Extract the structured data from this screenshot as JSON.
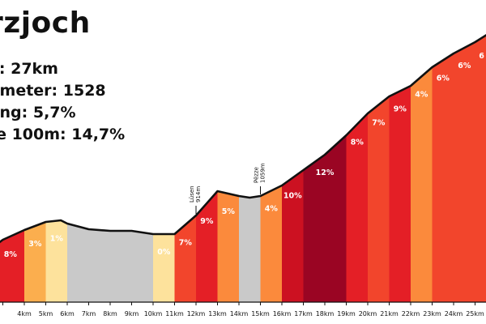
{
  "header": {
    "title": "rzjoch",
    "stats": [
      "e: 27km",
      "nmeter: 1528",
      "ung: 5,7%",
      "te 100m: 14,7%"
    ]
  },
  "colors": {
    "grade_0": "#c9c9c9",
    "grade_1": "#fde29c",
    "grade_2_3": "#fbae4e",
    "grade_4_5": "#fb8a3c",
    "grade_6_7": "#f2452c",
    "grade_8_9": "#e41f26",
    "grade_10_11": "#cc1121",
    "grade_12_plus": "#9a0523",
    "line": "#111111"
  },
  "chart_data": {
    "type": "area",
    "xlabel": "",
    "ylabel": "",
    "x_ticks": [
      "4km",
      "5km",
      "6km",
      "7km",
      "8km",
      "9km",
      "10km",
      "11km",
      "12km",
      "13km",
      "14km",
      "15km",
      "16km",
      "17km",
      "18km",
      "19km",
      "20km",
      "21km",
      "22km",
      "23km",
      "24km",
      "25km"
    ],
    "segments": [
      {
        "from_km": 2.7,
        "to_km": 4,
        "grade_label": "8%",
        "grade": 8
      },
      {
        "from_km": 4,
        "to_km": 5,
        "grade_label": "3%",
        "grade": 3
      },
      {
        "from_km": 5,
        "to_km": 6,
        "grade_label": "1%",
        "grade": 1
      },
      {
        "from_km": 6,
        "to_km": 10,
        "grade_label": "",
        "grade": 0
      },
      {
        "from_km": 10,
        "to_km": 11,
        "grade_label": "0%",
        "grade": 0.5
      },
      {
        "from_km": 11,
        "to_km": 12,
        "grade_label": "7%",
        "grade": 7
      },
      {
        "from_km": 12,
        "to_km": 13,
        "grade_label": "9%",
        "grade": 9
      },
      {
        "from_km": 13,
        "to_km": 14,
        "grade_label": "5%",
        "grade": 5
      },
      {
        "from_km": 14,
        "to_km": 15,
        "grade_label": "",
        "grade": 0
      },
      {
        "from_km": 15,
        "to_km": 16,
        "grade_label": "4%",
        "grade": 4
      },
      {
        "from_km": 16,
        "to_km": 17,
        "grade_label": "10%",
        "grade": 10
      },
      {
        "from_km": 17,
        "to_km": 19,
        "grade_label": "12%",
        "grade": 12
      },
      {
        "from_km": 19,
        "to_km": 20,
        "grade_label": "8%",
        "grade": 8
      },
      {
        "from_km": 20,
        "to_km": 21,
        "grade_label": "7%",
        "grade": 7
      },
      {
        "from_km": 21,
        "to_km": 22,
        "grade_label": "9%",
        "grade": 9
      },
      {
        "from_km": 22,
        "to_km": 23,
        "grade_label": "4%",
        "grade": 4
      },
      {
        "from_km": 23,
        "to_km": 24,
        "grade_label": "6%",
        "grade": 6
      },
      {
        "from_km": 24,
        "to_km": 25,
        "grade_label": "6%",
        "grade": 6
      },
      {
        "from_km": 25,
        "to_km": 25.6,
        "grade_label": "6",
        "grade": 6
      }
    ],
    "profile_km": [
      2.7,
      3.0,
      4.0,
      5.0,
      5.7,
      6.0,
      7.0,
      8.0,
      9.0,
      10.0,
      11.0,
      12.0,
      13.0,
      14.0,
      14.5,
      15.0,
      16.0,
      17.0,
      18.0,
      19.0,
      20.0,
      21.0,
      22.0,
      23.0,
      24.0,
      25.0,
      25.6
    ],
    "profile_height": [
      302,
      296,
      284,
      274,
      272,
      276,
      283,
      285,
      285,
      289,
      289,
      266,
      236,
      242,
      244,
      242,
      229,
      210,
      191,
      167,
      140,
      119,
      106,
      83,
      66,
      52,
      42
    ],
    "annotations": [
      {
        "km": 12,
        "lines": [
          "Lüsen",
          "914m"
        ]
      },
      {
        "km": 15,
        "lines": [
          "Pëzze",
          "1059m"
        ]
      }
    ]
  }
}
